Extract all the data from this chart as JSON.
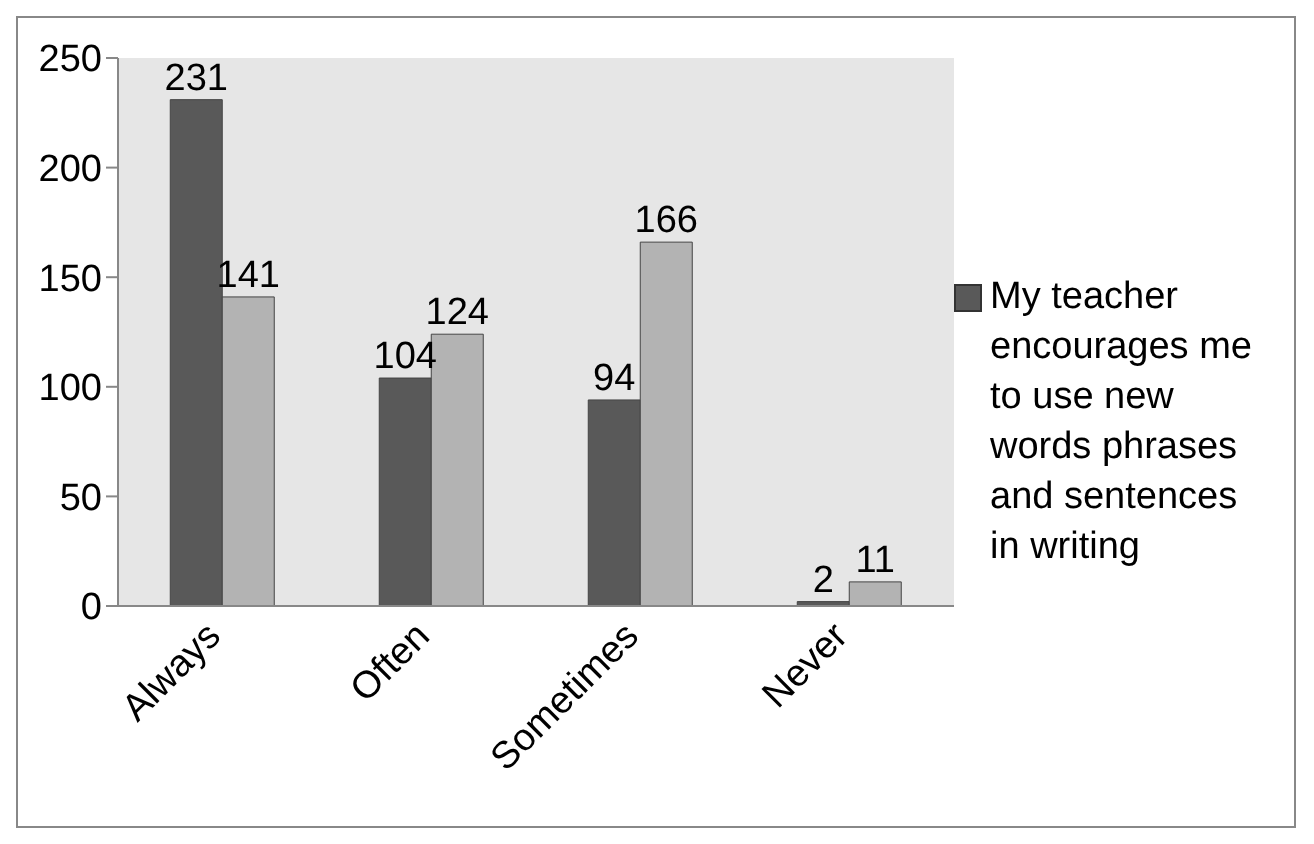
{
  "chart_data": {
    "type": "bar",
    "categories": [
      "Always",
      "Often",
      "Sometimes",
      "Never"
    ],
    "series": [
      {
        "name": "My teacher encourages me to use new words phrases and sentences in writing",
        "color": "#595959",
        "values": [
          231,
          104,
          94,
          2
        ]
      },
      {
        "color": "#b3b3b3",
        "values": [
          141,
          124,
          166,
          11
        ]
      }
    ],
    "ylim": [
      0,
      250
    ],
    "yticks": [
      0,
      50,
      100,
      150,
      200,
      250
    ],
    "data_labels": true,
    "legend": "right",
    "grid": false
  }
}
